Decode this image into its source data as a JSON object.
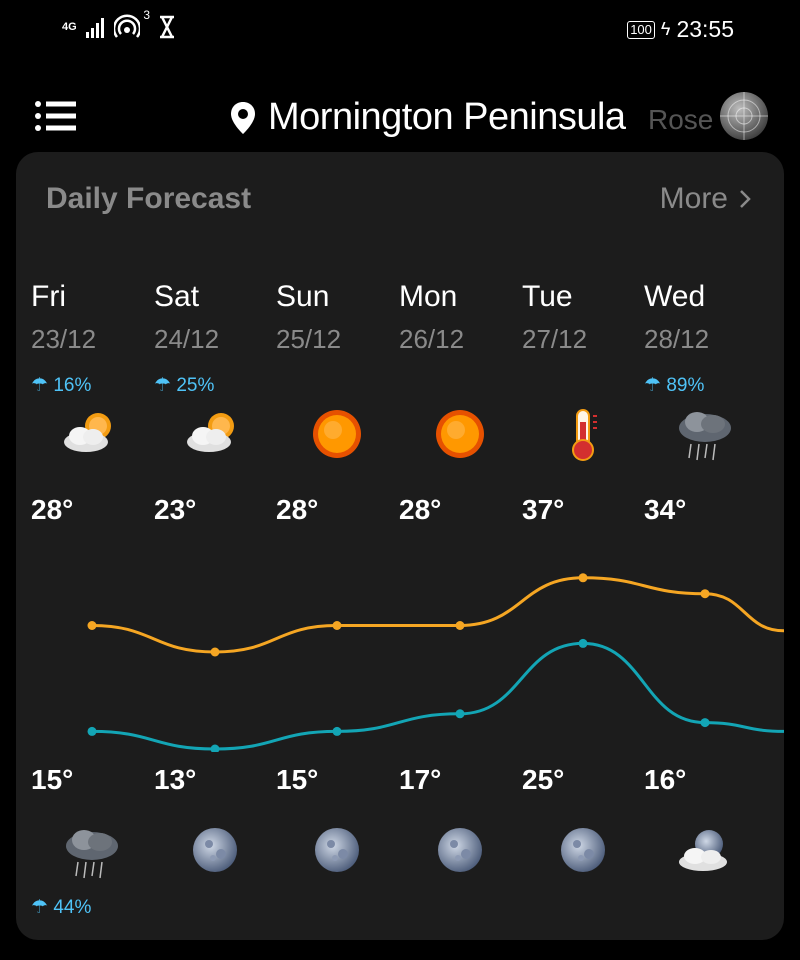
{
  "status_bar": {
    "network": "4G",
    "hotspot_count": "3",
    "battery": "100",
    "time": "23:55"
  },
  "header": {
    "location": "Mornington  Peninsula",
    "next_location": "Rose"
  },
  "forecast": {
    "title": "Daily Forecast",
    "more_label": "More",
    "days": [
      {
        "day": "Fri",
        "date": "23/12",
        "day_rain": "16%",
        "day_icon": "partly-cloudy-sun-icon",
        "high": "28°",
        "low": "15°",
        "night_icon": "rain-cloud-icon",
        "night_rain": "44%"
      },
      {
        "day": "Sat",
        "date": "24/12",
        "day_rain": "25%",
        "day_icon": "partly-cloudy-sun-icon",
        "high": "23°",
        "low": "13°",
        "night_icon": "moon-icon",
        "night_rain": ""
      },
      {
        "day": "Sun",
        "date": "25/12",
        "day_rain": "",
        "day_icon": "sun-icon",
        "high": "28°",
        "low": "15°",
        "night_icon": "moon-icon",
        "night_rain": ""
      },
      {
        "day": "Mon",
        "date": "26/12",
        "day_rain": "",
        "day_icon": "sun-icon",
        "high": "28°",
        "low": "17°",
        "night_icon": "moon-icon",
        "night_rain": ""
      },
      {
        "day": "Tue",
        "date": "27/12",
        "day_rain": "",
        "day_icon": "hot-thermometer-icon",
        "high": "37°",
        "low": "25°",
        "night_icon": "moon-icon",
        "night_rain": ""
      },
      {
        "day": "Wed",
        "date": "28/12",
        "day_rain": "89%",
        "day_icon": "storm-cloud-icon",
        "high": "34°",
        "low": "16°",
        "night_icon": "partly-cloudy-moon-icon",
        "night_rain": ""
      }
    ],
    "high_values": [
      28,
      23,
      28,
      28,
      37,
      34
    ],
    "low_values": [
      15,
      13,
      15,
      17,
      25,
      16
    ],
    "colors": {
      "high_line": "#f5a623",
      "low_line": "#13a5b5",
      "rain_text": "#4fc3f7"
    }
  }
}
